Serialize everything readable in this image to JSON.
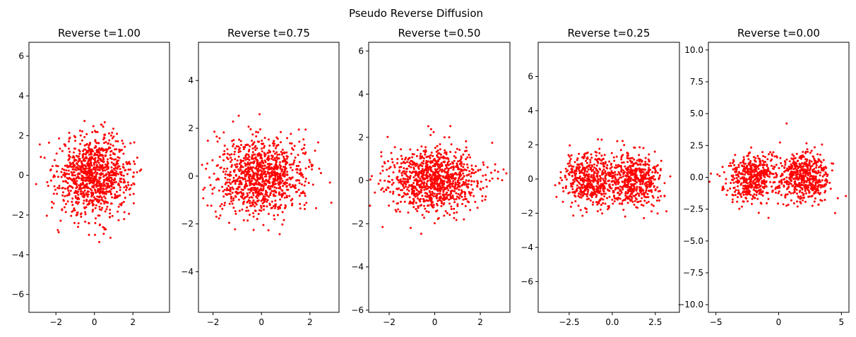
{
  "figure": {
    "suptitle": "Pseudo Reverse Diffusion"
  },
  "chart_data": [
    {
      "type": "scatter",
      "title": "Reverse t=1.00",
      "xlabel": "",
      "ylabel": "",
      "xlim": [
        -3.4,
        3.9
      ],
      "ylim": [
        -6.9,
        6.7
      ],
      "xticks": [
        -2,
        0,
        2
      ],
      "xtick_labels": [
        "−2",
        "0",
        "2"
      ],
      "yticks": [
        -6,
        -4,
        -2,
        0,
        2,
        4,
        6
      ],
      "ytick_labels": [
        "−6",
        "−4",
        "−2",
        "0",
        "2",
        "4",
        "6"
      ],
      "color": "#ff0000",
      "clusters": [
        {
          "cx": 0.0,
          "cy": 0.0,
          "sx": 0.95,
          "sy": 1.0,
          "n": 1000
        }
      ],
      "grid": false
    },
    {
      "type": "scatter",
      "title": "Reverse t=0.75",
      "xlabel": "",
      "ylabel": "",
      "xlim": [
        -2.6,
        3.2
      ],
      "ylim": [
        -5.7,
        5.6
      ],
      "xticks": [
        -2,
        0,
        2
      ],
      "xtick_labels": [
        "−2",
        "0",
        "2"
      ],
      "yticks": [
        -4,
        -2,
        0,
        2,
        4
      ],
      "ytick_labels": [
        "−4",
        "−2",
        "0",
        "2",
        "4"
      ],
      "color": "#ff0000",
      "clusters": [
        {
          "cx": 0.0,
          "cy": 0.0,
          "sx": 0.9,
          "sy": 0.8,
          "n": 1000
        }
      ],
      "grid": false
    },
    {
      "type": "scatter",
      "title": "Reverse t=0.50",
      "xlabel": "",
      "ylabel": "",
      "xlim": [
        -2.9,
        3.3
      ],
      "ylim": [
        -6.1,
        6.4
      ],
      "xticks": [
        -2,
        0,
        2
      ],
      "xtick_labels": [
        "−2",
        "0",
        "2"
      ],
      "yticks": [
        -6,
        -4,
        -2,
        0,
        2,
        4,
        6
      ],
      "ytick_labels": [
        "−6",
        "−4",
        "−2",
        "0",
        "2",
        "4",
        "6"
      ],
      "color": "#ff0000",
      "clusters": [
        {
          "cx": 0.0,
          "cy": 0.0,
          "sx": 1.05,
          "sy": 0.75,
          "n": 1000
        }
      ],
      "grid": false
    },
    {
      "type": "scatter",
      "title": "Reverse t=0.25",
      "xlabel": "",
      "ylabel": "",
      "xlim": [
        -4.3,
        3.9
      ],
      "ylim": [
        -7.8,
        8.0
      ],
      "xticks": [
        -2.5,
        0,
        2.5
      ],
      "xtick_labels": [
        "−2.5",
        "0.0",
        "2.5"
      ],
      "yticks": [
        -6,
        -4,
        -2,
        0,
        2,
        4,
        6
      ],
      "ytick_labels": [
        "−6",
        "−4",
        "−2",
        "0",
        "2",
        "4",
        "6"
      ],
      "color": "#ff0000",
      "clusters": [
        {
          "cx": -1.3,
          "cy": 0.0,
          "sx": 0.75,
          "sy": 0.8,
          "n": 500
        },
        {
          "cx": 1.3,
          "cy": 0.0,
          "sx": 0.75,
          "sy": 0.8,
          "n": 500
        }
      ],
      "grid": false
    },
    {
      "type": "scatter",
      "title": "Reverse t=0.00",
      "xlabel": "",
      "ylabel": "",
      "xlim": [
        -5.6,
        5.6
      ],
      "ylim": [
        -10.6,
        10.6
      ],
      "xticks": [
        -5,
        0,
        5
      ],
      "xtick_labels": [
        "−5",
        "0",
        "5"
      ],
      "yticks": [
        -10,
        -7.5,
        -5,
        -2.5,
        0,
        2.5,
        5,
        7.5,
        10
      ],
      "ytick_labels": [
        "−10.0",
        "−7.5",
        "−5.0",
        "−2.5",
        "0.0",
        "2.5",
        "5.0",
        "7.5",
        "10.0"
      ],
      "color": "#ff0000",
      "clusters": [
        {
          "cx": -2.0,
          "cy": 0.0,
          "sx": 1.0,
          "sy": 0.95,
          "n": 500
        },
        {
          "cx": 2.0,
          "cy": 0.0,
          "sx": 1.0,
          "sy": 0.95,
          "n": 500
        }
      ],
      "grid": false
    }
  ]
}
